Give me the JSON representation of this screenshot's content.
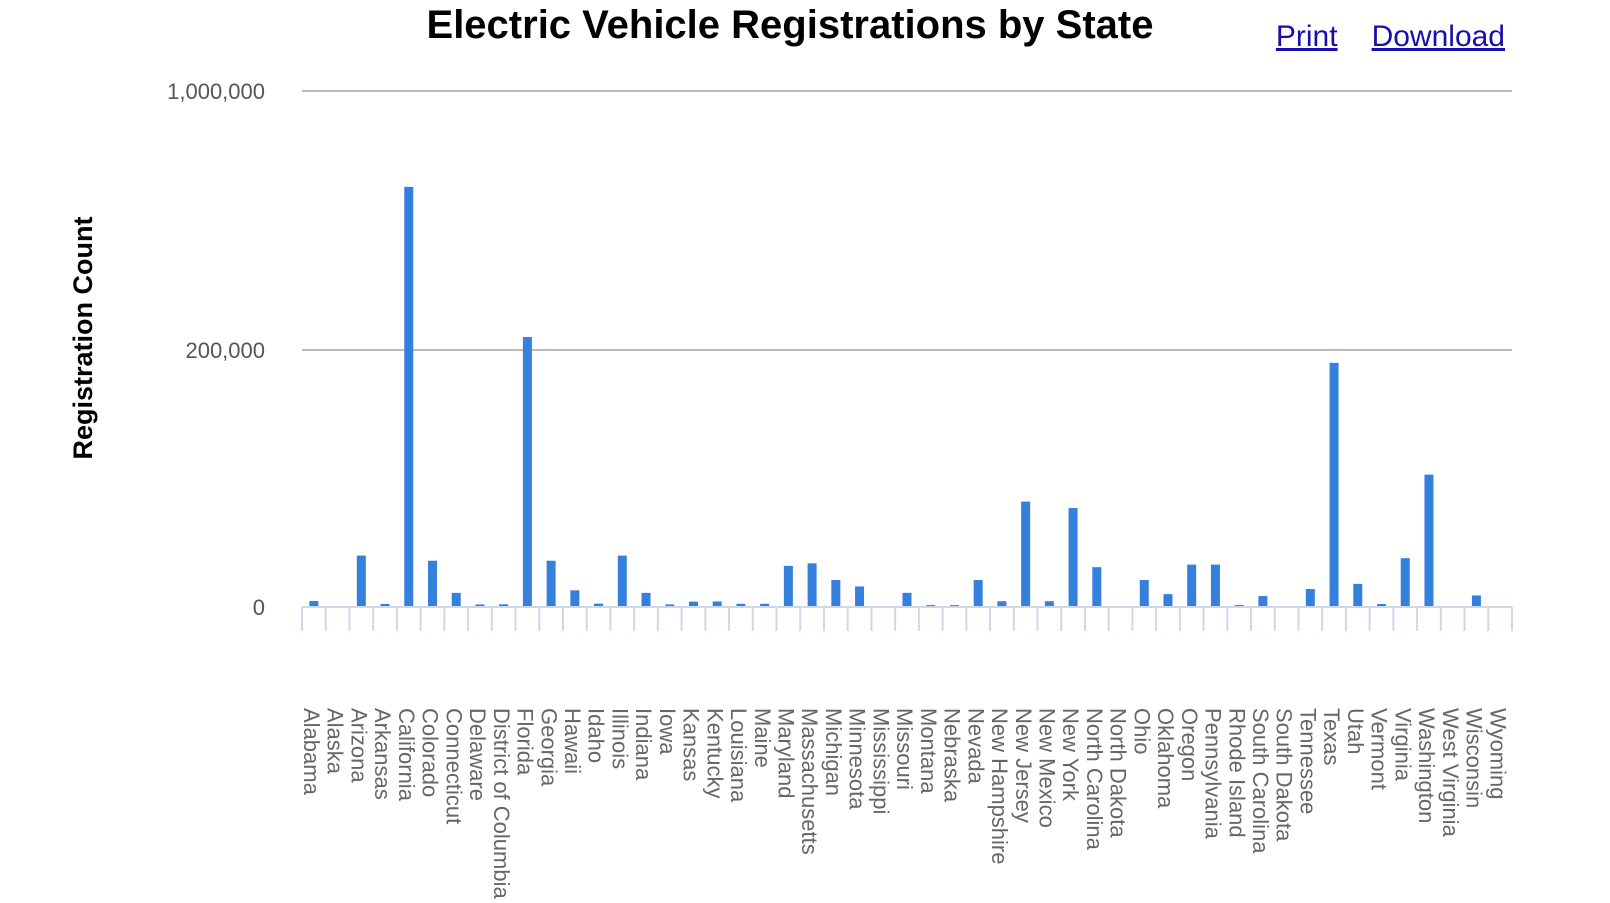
{
  "header": {
    "title": "Electric Vehicle Registrations by State",
    "print_label": "Print",
    "download_label": "Download"
  },
  "colors": {
    "bar": "#3480dc",
    "gridline": "#bbbbbb",
    "axis": "#cfd8e8"
  },
  "chart_data": {
    "type": "bar",
    "title": "Electric Vehicle Registrations by State",
    "xlabel": "",
    "ylabel": "Registration Count",
    "y_ticks": [
      {
        "value": 0,
        "label": "0"
      },
      {
        "value": 200000,
        "label": "200,000"
      },
      {
        "value": 1000000,
        "label": "1,000,000"
      }
    ],
    "ylim": [
      0,
      1000000
    ],
    "grid": true,
    "legend": "none",
    "categories": [
      "Alabama",
      "Alaska",
      "Arizona",
      "Arkansas",
      "California",
      "Colorado",
      "Connecticut",
      "Delaware",
      "District of Columbia",
      "Florida",
      "Georgia",
      "Hawaii",
      "Idaho",
      "Illinois",
      "Indiana",
      "Iowa",
      "Kansas",
      "Kentucky",
      "Louisiana",
      "Maine",
      "Maryland",
      "Massachusetts",
      "Michigan",
      "Minnesota",
      "Mississippi",
      "Missouri",
      "Montana",
      "Nebraska",
      "Nevada",
      "New Hampshire",
      "New Jersey",
      "New Mexico",
      "New York",
      "North Carolina",
      "North Dakota",
      "Ohio",
      "Oklahoma",
      "Oregon",
      "Pennsylvania",
      "Rhode Island",
      "South Carolina",
      "South Dakota",
      "Tennessee",
      "Texas",
      "Utah",
      "Vermont",
      "Virginia",
      "Washington",
      "West Virginia",
      "Wisconsin",
      "Wyoming"
    ],
    "values": [
      4700,
      500,
      40000,
      2400,
      704000,
      36000,
      11000,
      2000,
      2100,
      240000,
      36000,
      13000,
      2600,
      40000,
      11000,
      2000,
      4200,
      4300,
      2500,
      2500,
      32000,
      34000,
      21000,
      16000,
      500,
      11000,
      1500,
      1500,
      21000,
      4500,
      82000,
      4500,
      77000,
      31000,
      500,
      21000,
      10000,
      33000,
      33000,
      1500,
      8500,
      500,
      14000,
      190000,
      18000,
      2300,
      38000,
      103000,
      500,
      9000,
      500
    ]
  }
}
